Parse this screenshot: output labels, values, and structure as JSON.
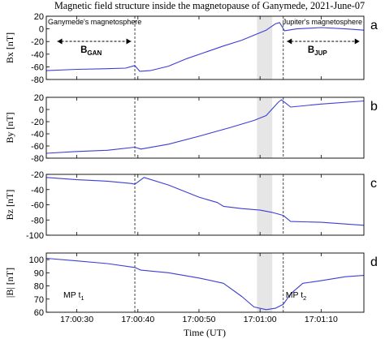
{
  "title": "Magnetic field structure inside the magnetopause of Ganymede, 2021-June-07",
  "xlabel": "Time (UT)",
  "region_labels": {
    "left": "Ganymede's magnetosphere",
    "right": "Jupiter's magnetosphere"
  },
  "arrow_labels": {
    "gan_main": "B",
    "gan_sub": "GAN",
    "jup_main": "B",
    "jup_sub": "JUP"
  },
  "event_labels": {
    "mp1_main": "MP t",
    "mp1_sub": "1",
    "mp2_main": "MP t",
    "mp2_sub": "2"
  },
  "colors": {
    "line": "#3b3fd6",
    "shade": "#e6e6e6",
    "axis": "#000000"
  },
  "chart_data": {
    "type": "line",
    "x_unit": "seconds after 17:00:00 UT",
    "xlim": [
      25,
      77
    ],
    "xticks": [
      30,
      40,
      50,
      60,
      70
    ],
    "xtick_labels": [
      "17:00:30",
      "17:00:40",
      "17:00:50",
      "17:01:00",
      "17:01:10"
    ],
    "shaded_interval": [
      59.5,
      62.0
    ],
    "event_lines": [
      39.5,
      63.8
    ],
    "panels": [
      {
        "id": "a",
        "ylabel": "Bx [nT]",
        "ylim": [
          -80,
          20
        ],
        "yticks": [
          20,
          0,
          -20,
          -40,
          -60,
          -80
        ],
        "x": [
          25,
          30,
          35,
          38,
          39.5,
          40.3,
          42,
          45,
          48,
          51,
          54,
          57,
          59,
          61,
          62.5,
          63.2,
          64,
          66,
          70,
          74,
          77
        ],
        "y": [
          -66,
          -64,
          -63,
          -62,
          -58,
          -67,
          -66,
          -59,
          -47,
          -37,
          -27,
          -18,
          -10,
          -2,
          8,
          10,
          -3,
          0,
          2,
          0,
          -2
        ]
      },
      {
        "id": "b",
        "ylabel": "By [nT]",
        "ylim": [
          -80,
          20
        ],
        "yticks": [
          20,
          0,
          -20,
          -40,
          -60,
          -80
        ],
        "x": [
          25,
          30,
          35,
          39.5,
          40.5,
          45,
          50,
          55,
          59,
          61,
          63,
          63.5,
          65,
          70,
          77
        ],
        "y": [
          -72,
          -69,
          -67,
          -62,
          -65,
          -57,
          -44,
          -30,
          -18,
          -10,
          12,
          16,
          4,
          9,
          14
        ]
      },
      {
        "id": "c",
        "ylabel": "Bz [nT]",
        "ylim": [
          -100,
          -20
        ],
        "yticks": [
          -20,
          -40,
          -60,
          -80,
          -100
        ],
        "x": [
          25,
          30,
          35,
          39,
          39.5,
          41,
          45,
          50,
          53,
          54,
          57,
          60,
          62,
          63.8,
          65,
          70,
          77
        ],
        "y": [
          -24,
          -27,
          -29,
          -32,
          -33,
          -24,
          -34,
          -50,
          -57,
          -62,
          -65,
          -67,
          -70,
          -74,
          -82,
          -83,
          -87
        ]
      },
      {
        "id": "d",
        "ylabel": "|B| [nT]",
        "ylim": [
          60,
          105
        ],
        "yticks": [
          100,
          90,
          80,
          70,
          60
        ],
        "x": [
          25,
          30,
          35,
          39.5,
          40.5,
          45,
          50,
          54,
          57,
          59,
          61,
          62.5,
          63.8,
          65,
          67,
          70,
          74,
          77
        ],
        "y": [
          101,
          99,
          97,
          94,
          92,
          90,
          86,
          82,
          72,
          64,
          62,
          63,
          66,
          74,
          82,
          84,
          87,
          88
        ]
      }
    ]
  }
}
